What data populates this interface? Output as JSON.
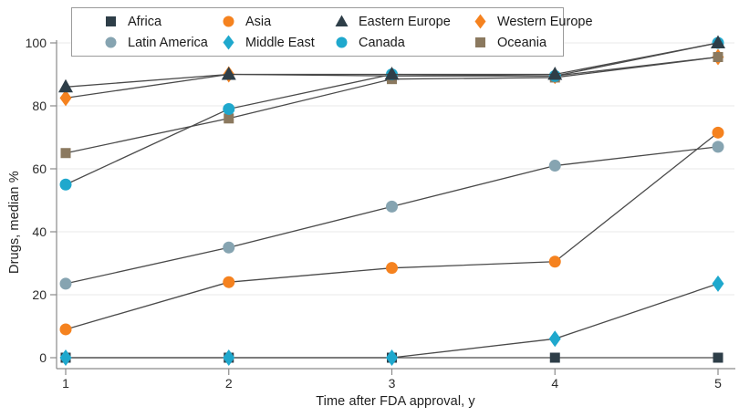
{
  "figure": {
    "x_axis_title": "Time after FDA approval, y",
    "y_axis_title": "Drugs, median %"
  },
  "styles": {
    "line_color": "#4a4a4a",
    "grid_color": "#e8e8e8",
    "spine_color": "#8a8a8a",
    "tick_text_color": "#2b2b2b",
    "legend_border_color": "#9b9b9b",
    "background": "#ffffff",
    "palette": {
      "dark_slate": "#2e3e48",
      "orange": "#f5821f",
      "teal": "#1fa8cd",
      "gray_blue": "#86a4b1",
      "brown": "#8b795f"
    }
  },
  "chart_data": {
    "type": "line",
    "title": "",
    "xlabel": "Time after FDA approval, y",
    "ylabel": "Drugs, median %",
    "x": [
      1,
      2,
      3,
      4,
      5
    ],
    "xticks": [
      1,
      2,
      3,
      4,
      5
    ],
    "yticks": [
      0,
      20,
      40,
      60,
      80,
      100
    ],
    "ylim": [
      0,
      100
    ],
    "grid": "horizontal",
    "legend_position": "top",
    "legend_order": [
      "Africa",
      "Asia",
      "Eastern Europe",
      "Western Europe",
      "Latin America",
      "Middle East",
      "Canada",
      "Oceania"
    ],
    "series": [
      {
        "name": "Latin America",
        "marker": "circle",
        "color": "#86a4b1",
        "values": [
          23.5,
          35,
          48,
          61,
          67
        ]
      },
      {
        "name": "Asia",
        "marker": "circle",
        "color": "#f5821f",
        "values": [
          9,
          24,
          28.5,
          30.5,
          71.5
        ]
      },
      {
        "name": "Western Europe",
        "marker": "diamond",
        "color": "#f5821f",
        "values": [
          82.5,
          90,
          89.5,
          89.5,
          95.5
        ]
      },
      {
        "name": "Oceania",
        "marker": "square",
        "color": "#8b795f",
        "values": [
          65,
          76,
          88.5,
          89,
          95.5
        ]
      },
      {
        "name": "Canada",
        "marker": "circle",
        "color": "#1fa8cd",
        "values": [
          55,
          79,
          90,
          89.5,
          100
        ]
      },
      {
        "name": "Eastern Europe",
        "marker": "triangle",
        "color": "#2e3e48",
        "values": [
          86,
          90,
          90,
          90,
          100
        ]
      },
      {
        "name": "Africa",
        "marker": "square",
        "color": "#2e3e48",
        "values": [
          0,
          0,
          0,
          0,
          0
        ]
      },
      {
        "name": "Middle East",
        "marker": "diamond",
        "color": "#1fa8cd",
        "values": [
          0,
          0,
          0,
          6,
          23.5
        ]
      }
    ]
  }
}
